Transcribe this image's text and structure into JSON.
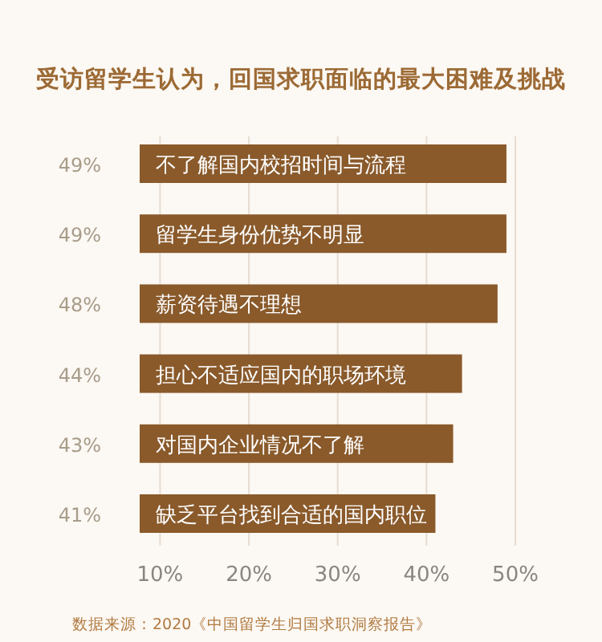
{
  "chart_data": {
    "type": "bar",
    "orientation": "horizontal",
    "title": "受访留学生认为，回国求职面临的最大困难及挑战",
    "categories": [
      "不了解国内校招时间与流程",
      "留学生身份优势不明显",
      "薪资待遇不理想",
      "担心不适应国内的职场环境",
      "对国内企业情况不了解",
      "缺乏平台找到合适的国内职位"
    ],
    "values": [
      49,
      49,
      48,
      44,
      43,
      41
    ],
    "value_labels": [
      "49%",
      "49%",
      "48%",
      "44%",
      "43%",
      "41%"
    ],
    "color": "#8a5a2b",
    "xlim": [
      7.7,
      50
    ],
    "xticks": [
      {
        "value": 10,
        "label": "10%"
      },
      {
        "value": 20,
        "label": "20%"
      },
      {
        "value": 30,
        "label": "30%"
      },
      {
        "value": 40,
        "label": "40%"
      },
      {
        "value": 50,
        "label": "50%"
      }
    ],
    "grid": "x",
    "annotations": [
      "数据来源：2020《中国留学生归国求职洞察报告》"
    ]
  }
}
